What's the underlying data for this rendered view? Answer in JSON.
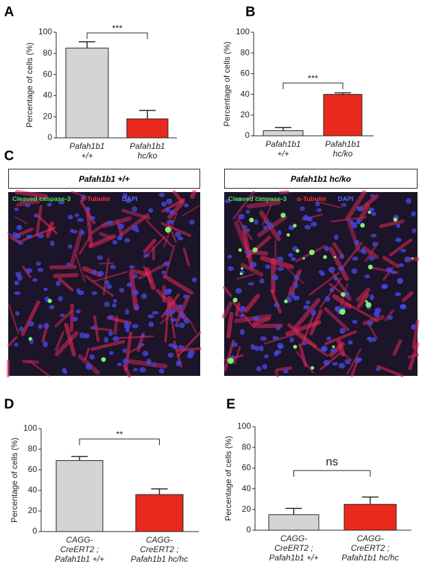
{
  "chart_data": [
    {
      "type": "bar",
      "panel": "A",
      "y_label": "Percentage of cells (%)",
      "categories": [
        "Pafah1b1\n+/+",
        "Pafah1b1\nhc/ko"
      ],
      "values": [
        85,
        18
      ],
      "errors": [
        6,
        8
      ],
      "colors": [
        "#d4d4d4",
        "#e8291c"
      ],
      "ylim": [
        0,
        100
      ],
      "yticks": [
        0,
        20,
        40,
        60,
        80,
        100
      ],
      "annotation": "***"
    },
    {
      "type": "bar",
      "panel": "B",
      "y_label": "Percentage of cells (%)",
      "categories": [
        "Pafah1b1\n+/+",
        "Pafah1b1\nhc/ko"
      ],
      "values": [
        5,
        40
      ],
      "errors": [
        3,
        1.5
      ],
      "colors": [
        "#d4d4d4",
        "#e8291c"
      ],
      "ylim": [
        0,
        100
      ],
      "yticks": [
        0,
        20,
        40,
        60,
        80,
        100
      ],
      "annotation": "***"
    },
    {
      "type": "bar",
      "panel": "D",
      "y_label": "Percentage of cells (%)",
      "categories": [
        "CAGG-\nCreERT2 ;\nPafah1b1 +/+",
        "CAGG-\nCreERT2 ;\nPafah1b1 hc/hc"
      ],
      "values": [
        69,
        36
      ],
      "errors": [
        4,
        5.5
      ],
      "colors": [
        "#d4d4d4",
        "#e8291c"
      ],
      "ylim": [
        0,
        100
      ],
      "yticks": [
        0,
        20,
        40,
        60,
        80,
        100
      ],
      "annotation": "**"
    },
    {
      "type": "bar",
      "panel": "E",
      "y_label": "Percentage of cells (%)",
      "categories": [
        "CAGG-\nCreERT2 ;\nPafah1b1 +/+",
        "CAGG-\nCreERT2 ;\nPafah1b1 hc/hc"
      ],
      "values": [
        15,
        25
      ],
      "errors": [
        6,
        7
      ],
      "colors": [
        "#d4d4d4",
        "#e8291c"
      ],
      "ylim": [
        0,
        100
      ],
      "yticks": [
        0,
        20,
        40,
        60,
        80,
        100
      ],
      "annotation": "ns"
    }
  ],
  "panel_c": {
    "label": "C",
    "images": [
      {
        "title": "Pafah1b1 +/+",
        "stains": [
          "Cleaved caspase-3",
          "α-Tubulin",
          "DAPI"
        ]
      },
      {
        "title": "Pafah1b1 hc/ko",
        "stains": [
          "Cleaved caspase-3",
          "α-Tubulin",
          "DAPI"
        ]
      }
    ]
  }
}
